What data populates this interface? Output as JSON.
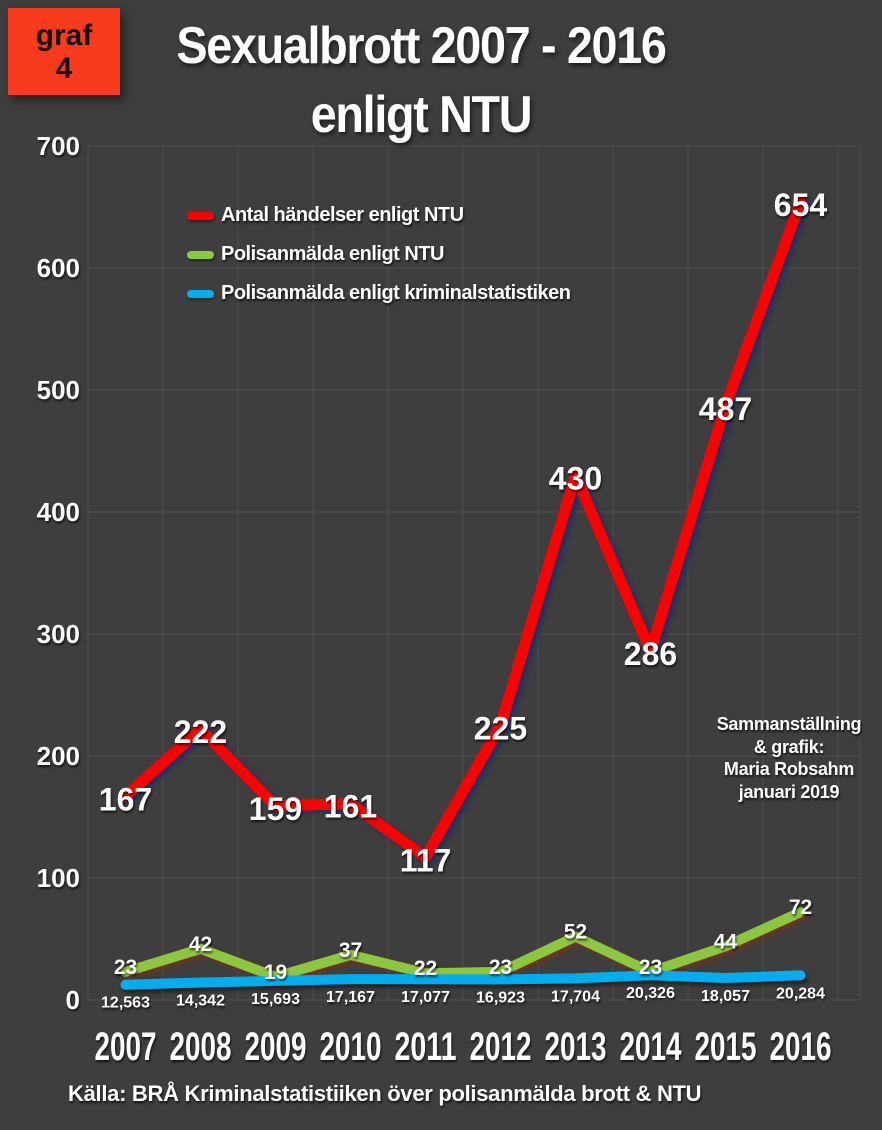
{
  "badge": {
    "line1": "graf",
    "line2": "4"
  },
  "title": {
    "line1": "Sexualbrott 2007 - 2016",
    "line2": "enligt NTU"
  },
  "annotation": {
    "line1": "Sammanställning",
    "line2": "& grafik:",
    "line3": "Maria Robsahm",
    "line4": "januari 2019"
  },
  "source": {
    "text": "Källa: BRÅ Kriminalstatistiiken över polisanmälda brott & NTU"
  },
  "colors": {
    "background": "#3e3e3e",
    "grid": "#4f4f4f",
    "badge_red": "#f93b1d",
    "series_red": "#ff0000",
    "series_green": "#8dc63f",
    "series_blue": "#00aeef",
    "text": "#ffffff"
  },
  "chart_data": {
    "type": "line",
    "title": "Sexualbrott 2007 - 2016 enligt NTU",
    "categories": [
      "2007",
      "2008",
      "2009",
      "2010",
      "2011",
      "2012",
      "2013",
      "2014",
      "2015",
      "2016"
    ],
    "series": [
      {
        "name": "Antal händelser enligt NTU",
        "color": "#ff0000",
        "values": [
          167,
          222,
          159,
          161,
          117,
          225,
          430,
          286,
          487,
          654
        ]
      },
      {
        "name": "Polisanmälda enligt NTU",
        "color": "#8dc63f",
        "values": [
          23,
          42,
          19,
          37,
          22,
          23,
          52,
          23,
          44,
          72
        ]
      },
      {
        "name": "Polisanmälda enligt kriminalstatistiken",
        "color": "#00aeef",
        "values": [
          12563,
          14342,
          15693,
          17167,
          17077,
          16923,
          17704,
          20326,
          18057,
          20284
        ],
        "plot_scale": 0.001
      }
    ],
    "xlabel": "",
    "ylabel": "",
    "ylim": [
      0,
      700
    ],
    "yticks": [
      0,
      100,
      200,
      300,
      400,
      500,
      600,
      700
    ],
    "grid": true,
    "legend_position": "top-left"
  }
}
